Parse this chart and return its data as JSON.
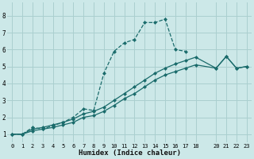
{
  "xlabel": "Humidex (Indice chaleur)",
  "background_color": "#cce8e8",
  "grid_color": "#aacfcf",
  "line_color": "#1a6b6b",
  "xlim": [
    -0.5,
    23.5
  ],
  "ylim": [
    0.5,
    8.8
  ],
  "xticks": [
    0,
    1,
    2,
    3,
    4,
    5,
    6,
    7,
    8,
    9,
    10,
    11,
    12,
    13,
    14,
    15,
    16,
    17,
    18,
    20,
    21,
    22,
    23
  ],
  "yticks": [
    1,
    2,
    3,
    4,
    5,
    6,
    7,
    8
  ],
  "series": [
    {
      "x": [
        0,
        1,
        2,
        3,
        4,
        5,
        6,
        7,
        8,
        9,
        10,
        11,
        12,
        13,
        14,
        15,
        16,
        17
      ],
      "y": [
        1,
        1,
        1.4,
        1.3,
        1.5,
        1.7,
        2.0,
        2.5,
        2.4,
        4.6,
        5.9,
        6.4,
        6.6,
        7.6,
        7.6,
        7.8,
        6.0,
        5.9
      ],
      "linestyle": "--",
      "marker": true
    },
    {
      "x": [
        0,
        1,
        2,
        3,
        4,
        5,
        6,
        7,
        8,
        9,
        10,
        11,
        12,
        13,
        14,
        15,
        16,
        17,
        18,
        20,
        21,
        22,
        23
      ],
      "y": [
        1,
        1,
        1.3,
        1.4,
        1.55,
        1.7,
        1.9,
        2.2,
        2.35,
        2.6,
        3.0,
        3.4,
        3.8,
        4.2,
        4.6,
        4.9,
        5.15,
        5.35,
        5.55,
        4.9,
        5.6,
        4.9,
        5.0
      ],
      "linestyle": "-",
      "marker": true
    },
    {
      "x": [
        0,
        1,
        2,
        3,
        4,
        5,
        6,
        7,
        8,
        9,
        10,
        11,
        12,
        13,
        14,
        15,
        16,
        17,
        18,
        20,
        21,
        22,
        23
      ],
      "y": [
        1,
        1,
        1.2,
        1.3,
        1.4,
        1.55,
        1.7,
        2.0,
        2.1,
        2.35,
        2.7,
        3.1,
        3.4,
        3.8,
        4.2,
        4.5,
        4.7,
        4.9,
        5.1,
        4.9,
        5.6,
        4.9,
        5.0
      ],
      "linestyle": "-",
      "marker": true
    }
  ]
}
